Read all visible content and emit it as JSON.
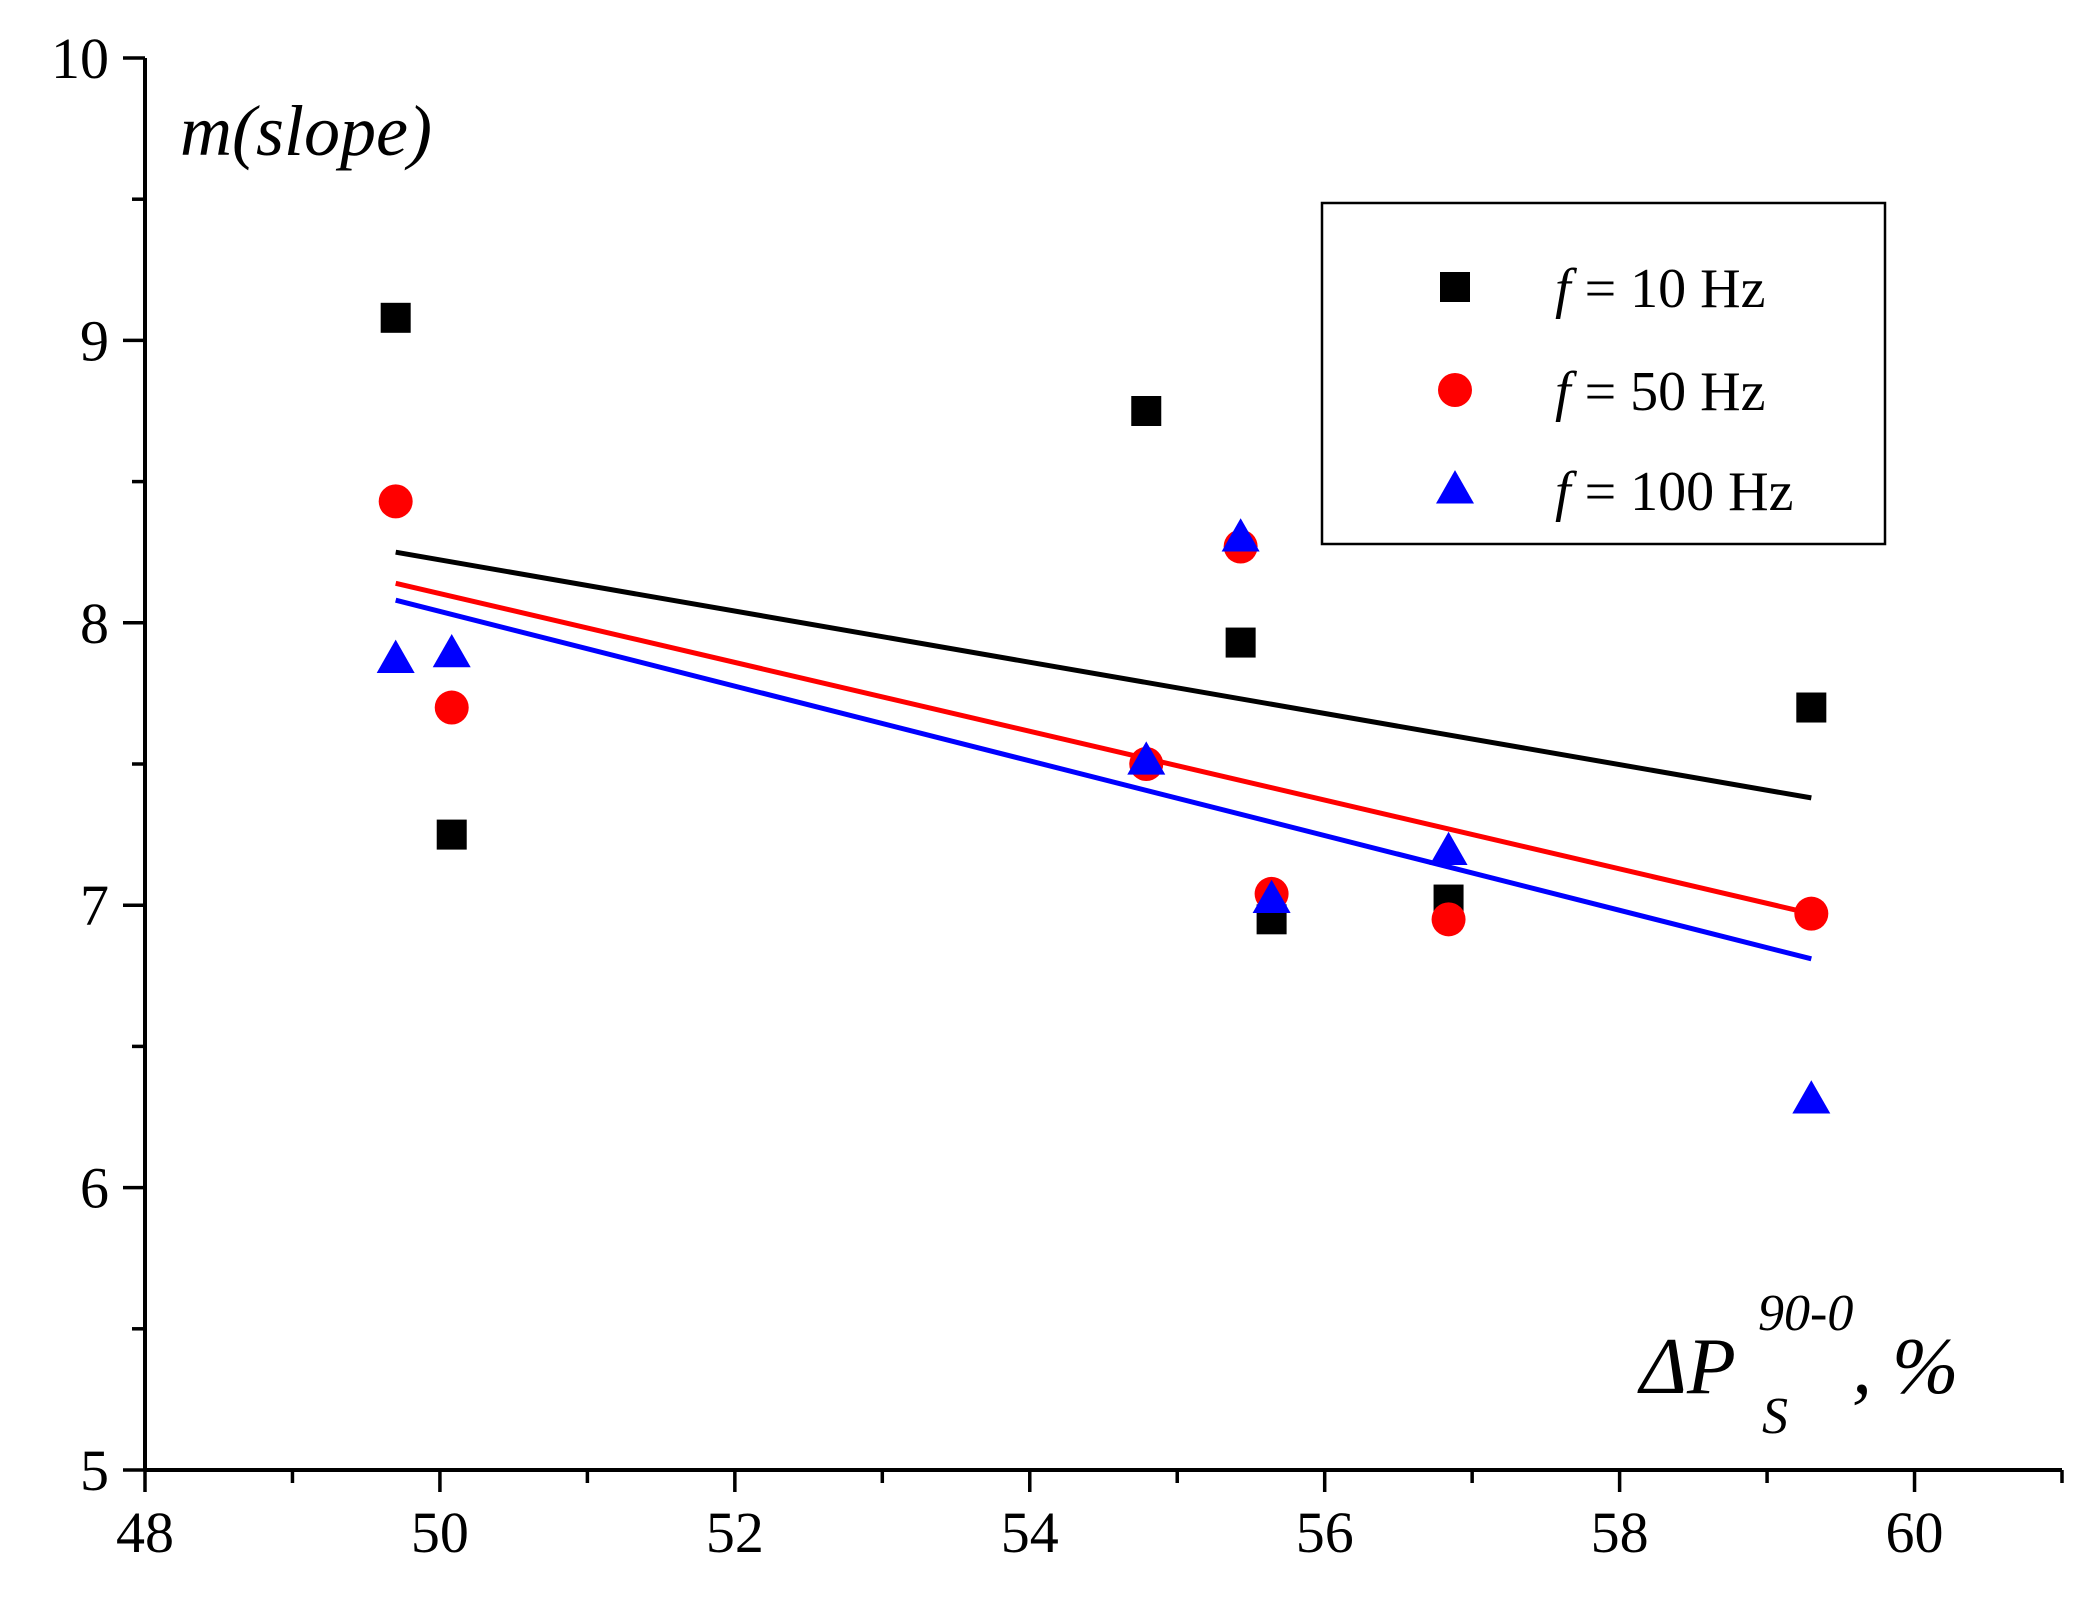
{
  "chart_data": {
    "type": "scatter",
    "ylabel": "m(slope)",
    "xlabel": {
      "main": "ΔP",
      "subscript": "S",
      "superscript": "90-0",
      "suffix": ", %"
    },
    "xlim": [
      48,
      61
    ],
    "ylim": [
      5,
      10
    ],
    "x_ticks": [
      48,
      50,
      52,
      54,
      56,
      58,
      60
    ],
    "y_ticks": [
      5,
      6,
      7,
      8,
      9,
      10
    ],
    "x_minor_step": 1,
    "y_minor_step": 0.5,
    "grid": false,
    "legend_position": "top-right",
    "series": [
      {
        "name": "f = 10 Hz",
        "legend_symbol": "f",
        "legend_rest": " = 10 Hz",
        "marker": "square",
        "color": "#000000",
        "x": [
          49.7,
          50.08,
          54.79,
          55.43,
          55.64,
          56.84,
          59.3
        ],
        "y": [
          9.08,
          7.25,
          8.75,
          7.93,
          6.95,
          7.02,
          7.7
        ],
        "fit": {
          "x": [
            49.7,
            59.3
          ],
          "y": [
            8.25,
            7.38
          ]
        }
      },
      {
        "name": "f = 50 Hz",
        "legend_symbol": "f",
        "legend_rest": " = 50 Hz",
        "marker": "circle",
        "color": "#ff0000",
        "x": [
          49.7,
          50.08,
          54.79,
          55.43,
          55.64,
          56.84,
          59.3
        ],
        "y": [
          8.43,
          7.7,
          7.5,
          8.27,
          7.04,
          6.95,
          6.97
        ],
        "fit": {
          "x": [
            49.7,
            59.3
          ],
          "y": [
            8.14,
            6.97
          ]
        }
      },
      {
        "name": "f = 100 Hz",
        "legend_symbol": "f",
        "legend_rest": " = 100 Hz",
        "marker": "triangle",
        "color": "#0000ff",
        "x": [
          49.7,
          50.08,
          54.79,
          55.43,
          55.64,
          56.84,
          59.3
        ],
        "y": [
          7.87,
          7.89,
          7.51,
          8.3,
          7.02,
          7.19,
          6.31
        ],
        "fit": {
          "x": [
            49.7,
            59.3
          ],
          "y": [
            8.08,
            6.81
          ]
        }
      }
    ]
  }
}
